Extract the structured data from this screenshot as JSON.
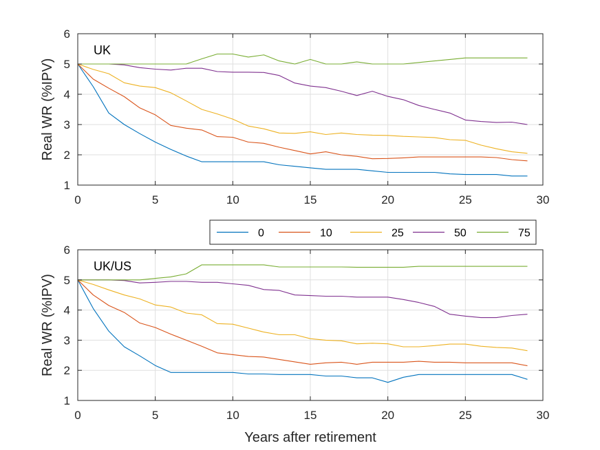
{
  "chart_data": {
    "type": "line",
    "x": [
      0,
      1,
      2,
      3,
      4,
      5,
      6,
      7,
      8,
      9,
      10,
      11,
      12,
      13,
      14,
      15,
      16,
      17,
      18,
      19,
      20,
      21,
      22,
      23,
      24,
      25,
      26,
      27,
      28,
      29
    ],
    "xlabel": "Years after retirement",
    "xlim": [
      0,
      30
    ],
    "xticks": [
      "0",
      "5",
      "10",
      "15",
      "20",
      "25",
      "30"
    ],
    "grid": true,
    "legend": {
      "placement": "between-panels",
      "entries": [
        "0",
        "10",
        "25",
        "50",
        "75"
      ]
    },
    "colors": [
      "#0072BD",
      "#D95319",
      "#EDB120",
      "#7E2F8E",
      "#77AC30"
    ],
    "panels": [
      {
        "title": "UK",
        "ylabel": "Real WR (%IPV)",
        "ylim": [
          1,
          6
        ],
        "yticks": [
          "1",
          "2",
          "3",
          "4",
          "5",
          "6"
        ],
        "series": [
          {
            "name": "0",
            "values": [
              5.0,
              4.25,
              3.38,
              3.0,
              2.7,
              2.42,
              2.18,
              1.96,
              1.77,
              1.77,
              1.77,
              1.77,
              1.77,
              1.67,
              1.62,
              1.57,
              1.52,
              1.52,
              1.52,
              1.47,
              1.42,
              1.42,
              1.42,
              1.42,
              1.37,
              1.35,
              1.35,
              1.35,
              1.3,
              1.3
            ]
          },
          {
            "name": "10",
            "values": [
              5.0,
              4.5,
              4.2,
              3.92,
              3.55,
              3.32,
              2.97,
              2.88,
              2.82,
              2.6,
              2.58,
              2.42,
              2.38,
              2.25,
              2.14,
              2.03,
              2.1,
              2.0,
              1.95,
              1.87,
              1.88,
              1.9,
              1.93,
              1.93,
              1.93,
              1.93,
              1.93,
              1.91,
              1.84,
              1.8
            ]
          },
          {
            "name": "25",
            "values": [
              5.0,
              4.82,
              4.68,
              4.38,
              4.27,
              4.22,
              4.05,
              3.78,
              3.5,
              3.35,
              3.18,
              2.95,
              2.86,
              2.72,
              2.71,
              2.76,
              2.67,
              2.72,
              2.67,
              2.65,
              2.64,
              2.61,
              2.59,
              2.57,
              2.5,
              2.48,
              2.32,
              2.2,
              2.1,
              2.05
            ]
          },
          {
            "name": "50",
            "values": [
              5.0,
              5.0,
              5.0,
              4.97,
              4.88,
              4.83,
              4.8,
              4.86,
              4.86,
              4.75,
              4.73,
              4.73,
              4.72,
              4.62,
              4.37,
              4.27,
              4.22,
              4.1,
              3.96,
              4.1,
              3.93,
              3.82,
              3.63,
              3.5,
              3.38,
              3.15,
              3.1,
              3.07,
              3.08,
              3.0
            ]
          },
          {
            "name": "75",
            "values": [
              5.0,
              5.0,
              5.0,
              5.0,
              5.0,
              5.0,
              5.0,
              5.0,
              5.17,
              5.33,
              5.33,
              5.23,
              5.3,
              5.1,
              5.0,
              5.15,
              5.0,
              5.0,
              5.07,
              5.0,
              5.0,
              5.0,
              5.05,
              5.1,
              5.15,
              5.2,
              5.2,
              5.2,
              5.2,
              5.2
            ]
          }
        ]
      },
      {
        "title": "UK/US",
        "ylabel": "Real WR (%IPV)",
        "ylim": [
          1,
          6
        ],
        "yticks": [
          "1",
          "2",
          "3",
          "4",
          "5",
          "6"
        ],
        "series": [
          {
            "name": "0",
            "values": [
              5.0,
              4.05,
              3.3,
              2.78,
              2.48,
              2.16,
              1.93,
              1.93,
              1.93,
              1.93,
              1.93,
              1.88,
              1.88,
              1.86,
              1.86,
              1.86,
              1.81,
              1.81,
              1.75,
              1.75,
              1.6,
              1.77,
              1.86,
              1.86,
              1.86,
              1.86,
              1.86,
              1.86,
              1.86,
              1.7
            ]
          },
          {
            "name": "10",
            "values": [
              5.0,
              4.5,
              4.15,
              3.92,
              3.57,
              3.42,
              3.2,
              3.0,
              2.8,
              2.58,
              2.52,
              2.46,
              2.44,
              2.36,
              2.28,
              2.2,
              2.25,
              2.27,
              2.2,
              2.27,
              2.27,
              2.27,
              2.3,
              2.27,
              2.27,
              2.25,
              2.25,
              2.25,
              2.25,
              2.15
            ]
          },
          {
            "name": "25",
            "values": [
              5.0,
              4.85,
              4.67,
              4.5,
              4.37,
              4.17,
              4.1,
              3.9,
              3.84,
              3.55,
              3.53,
              3.4,
              3.27,
              3.18,
              3.18,
              3.05,
              3.0,
              2.98,
              2.88,
              2.9,
              2.88,
              2.78,
              2.78,
              2.82,
              2.87,
              2.87,
              2.8,
              2.76,
              2.74,
              2.65
            ]
          },
          {
            "name": "50",
            "values": [
              5.0,
              5.0,
              5.0,
              4.98,
              4.9,
              4.92,
              4.95,
              4.95,
              4.92,
              4.92,
              4.87,
              4.82,
              4.68,
              4.65,
              4.5,
              4.48,
              4.46,
              4.46,
              4.43,
              4.43,
              4.43,
              4.35,
              4.25,
              4.12,
              3.86,
              3.8,
              3.75,
              3.75,
              3.82,
              3.86
            ]
          },
          {
            "name": "75",
            "values": [
              5.0,
              5.0,
              5.0,
              5.0,
              5.0,
              5.05,
              5.1,
              5.2,
              5.5,
              5.5,
              5.5,
              5.5,
              5.5,
              5.43,
              5.43,
              5.43,
              5.43,
              5.43,
              5.42,
              5.42,
              5.42,
              5.42,
              5.45,
              5.45,
              5.45,
              5.45,
              5.45,
              5.45,
              5.45,
              5.45
            ]
          }
        ]
      }
    ]
  }
}
